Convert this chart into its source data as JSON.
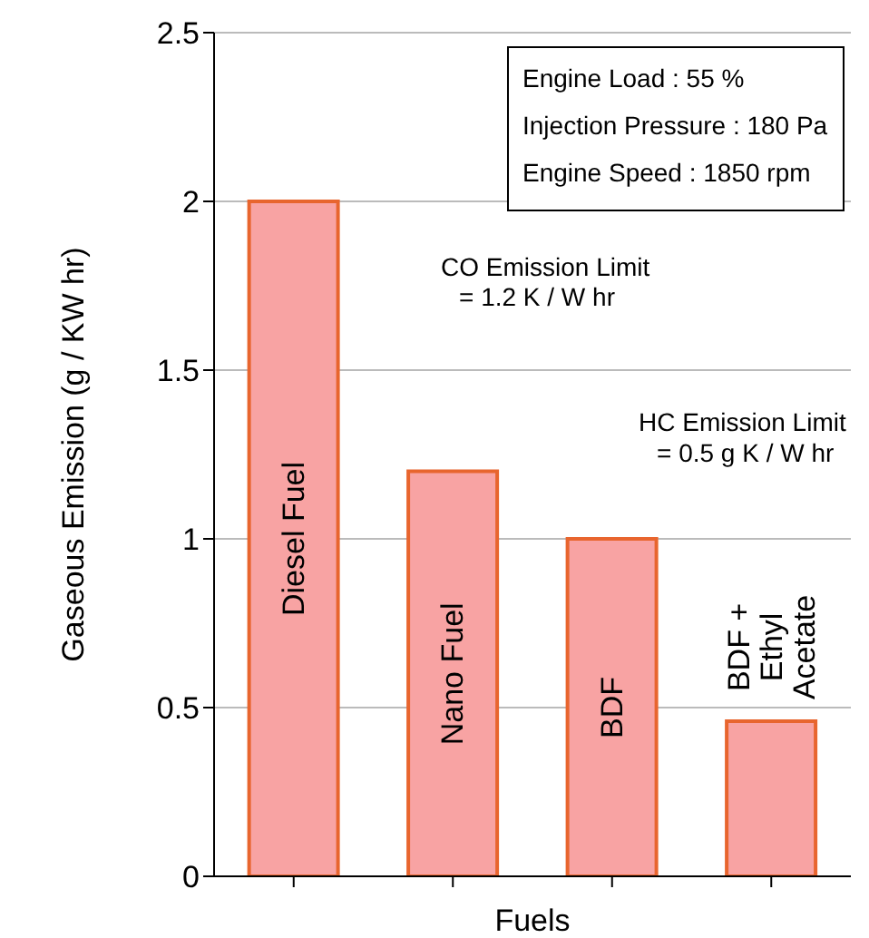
{
  "chart_data": {
    "type": "bar",
    "ylabel": "Gaseous Emission (g / KW hr)",
    "xlabel": "Fuels",
    "categories": [
      "Diesel Fuel",
      "Nano Fuel",
      "BDF",
      "BDF + Ethyl Acetate"
    ],
    "values": [
      2.0,
      1.2,
      1.0,
      0.46
    ],
    "color": "#f8a3a3",
    "ylim": [
      0,
      2.5
    ],
    "yticks": [
      0,
      0.5,
      1,
      1.5,
      2,
      2.5
    ],
    "grid": "y",
    "tick_labels": "y",
    "annotations": [
      "Engine Load : 55 %",
      "Injection Pressure : 180 Pa",
      "Engine Speed : 1850 rpm",
      "CO Emission Limit\n= 1.2 K / W hr",
      "HC Emission Limit\n= 0.5 g K / W hr"
    ]
  }
}
